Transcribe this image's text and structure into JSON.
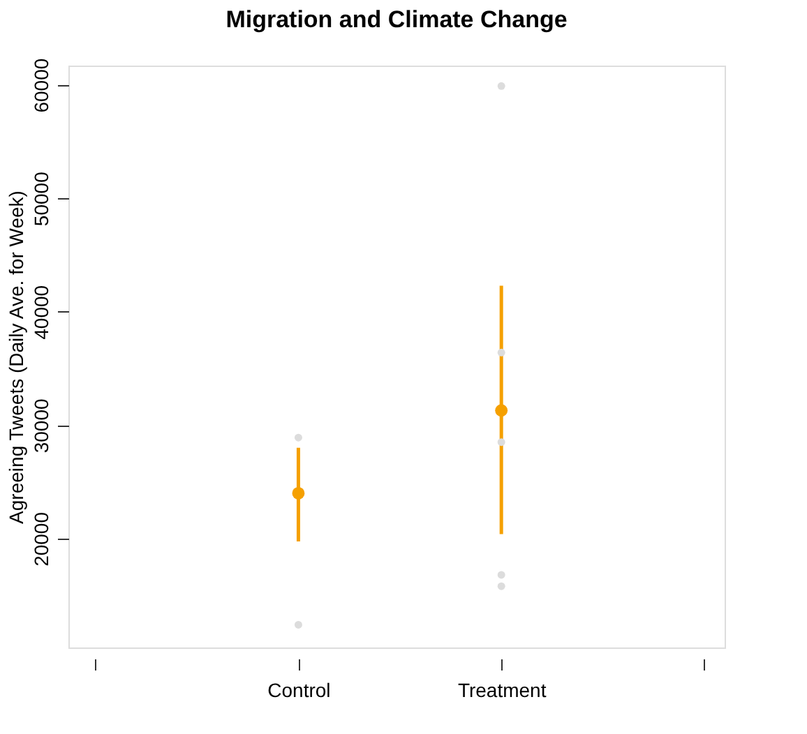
{
  "chart_data": {
    "type": "scatter",
    "title": "Migration and Climate Change",
    "ylabel": "Agreeing Tweets (Daily Ave. for Week)",
    "categories": [
      null,
      "Control",
      "Treatment",
      null
    ],
    "ylim": [
      10400,
      61700
    ],
    "yticks": [
      20000,
      30000,
      40000,
      50000,
      60000
    ],
    "grid": false,
    "marker": "circle",
    "series": [
      {
        "color": "#dcdcdc",
        "x": [
          "Control",
          "Control",
          "Treatment",
          "Treatment",
          "Treatment",
          "Treatment",
          "Treatment"
        ],
        "values": [
          28900,
          12400,
          59900,
          36400,
          28500,
          16800,
          15800
        ]
      },
      {
        "color": "#f5a000",
        "values": [
          null,
          24000,
          31300,
          null
        ],
        "errors": [
          null,
          [
            19750,
            28000
          ],
          [
            20400,
            42300
          ],
          null
        ]
      }
    ]
  }
}
